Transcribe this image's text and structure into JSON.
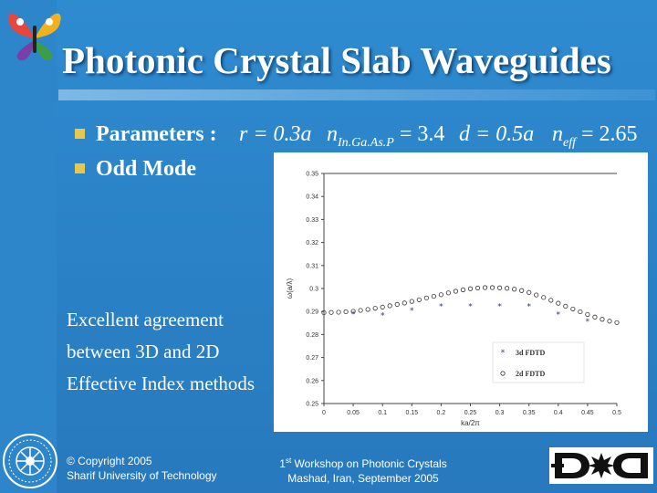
{
  "slide": {
    "title": "Photonic Crystal Slab Waveguides",
    "bullets": [
      "Parameters :",
      "Odd Mode"
    ],
    "formulas": {
      "r": "r = 0.3a",
      "n_sym": "n",
      "n_sub": "In.Ga.As.P",
      "n_val": " = 3.4",
      "d": "d = 0.5a",
      "neff_sym": "n",
      "neff_sub": "eff",
      "neff_val": " = 2.65"
    },
    "note": "Excellent agreement between 3D and 2D Effective Index methods",
    "footer_left": [
      "© Copyright 2005",
      "Sharif University of Technology"
    ],
    "footer_center": {
      "prefix": "1",
      "sup": "st",
      "line1_rest": " Workshop on Photonic Crystals",
      "line2": "Mashad, Iran, September 2005"
    },
    "colors": {
      "background": "#2c85c8",
      "bullet": "#e6c850",
      "text": "#ffffff"
    },
    "icons": [
      "butterfly-logo-icon",
      "university-seal-icon",
      "dic-logo-icon"
    ]
  },
  "chart_data": {
    "type": "scatter",
    "xlabel": "ka/2π",
    "ylabel": "ω(a/λ)",
    "xlim": [
      0,
      0.5
    ],
    "ylim": [
      0.25,
      0.35
    ],
    "x_ticks": [
      "0",
      "0.05",
      "0.1",
      "0.15",
      "0.2",
      "0.25",
      "0.3",
      "0.35",
      "0.4",
      "0.45",
      "0.5"
    ],
    "y_ticks": [
      "0.25",
      "0.26",
      "0.27",
      "0.28",
      "0.29",
      "0.3",
      "0.31",
      "0.32",
      "0.33",
      "0.34",
      "0.35"
    ],
    "legend_position": "bottom-right",
    "grid": false,
    "series": [
      {
        "name": "3d FDTD",
        "marker": "star",
        "x": [
          0.05,
          0.1,
          0.15,
          0.2,
          0.25,
          0.3,
          0.35,
          0.4,
          0.45
        ],
        "y": [
          0.2888,
          0.2882,
          0.2905,
          0.2923,
          0.2922,
          0.2922,
          0.2922,
          0.2886,
          0.2858
        ]
      },
      {
        "name": "2d FDTD",
        "marker": "circle",
        "x": [
          0,
          0.0125,
          0.025,
          0.0375,
          0.05,
          0.0625,
          0.075,
          0.0875,
          0.1,
          0.1125,
          0.125,
          0.1375,
          0.15,
          0.1625,
          0.175,
          0.1875,
          0.2,
          0.2125,
          0.225,
          0.2375,
          0.25,
          0.2625,
          0.275,
          0.2875,
          0.3,
          0.3125,
          0.325,
          0.3375,
          0.35,
          0.3625,
          0.375,
          0.3875,
          0.4,
          0.4125,
          0.425,
          0.4375,
          0.45,
          0.4625,
          0.475,
          0.4875,
          0.5
        ],
        "y": [
          0.2895,
          0.2896,
          0.2897,
          0.2899,
          0.2901,
          0.2905,
          0.2909,
          0.2914,
          0.2919,
          0.2925,
          0.2931,
          0.2937,
          0.2944,
          0.2951,
          0.2959,
          0.2966,
          0.2973,
          0.2981,
          0.2988,
          0.2994,
          0.2999,
          0.3002,
          0.3004,
          0.3004,
          0.3003,
          0.3001,
          0.2997,
          0.2991,
          0.2983,
          0.2972,
          0.2961,
          0.2949,
          0.2936,
          0.2923,
          0.2911,
          0.2899,
          0.2887,
          0.2876,
          0.2866,
          0.2858,
          0.2852
        ]
      }
    ]
  }
}
